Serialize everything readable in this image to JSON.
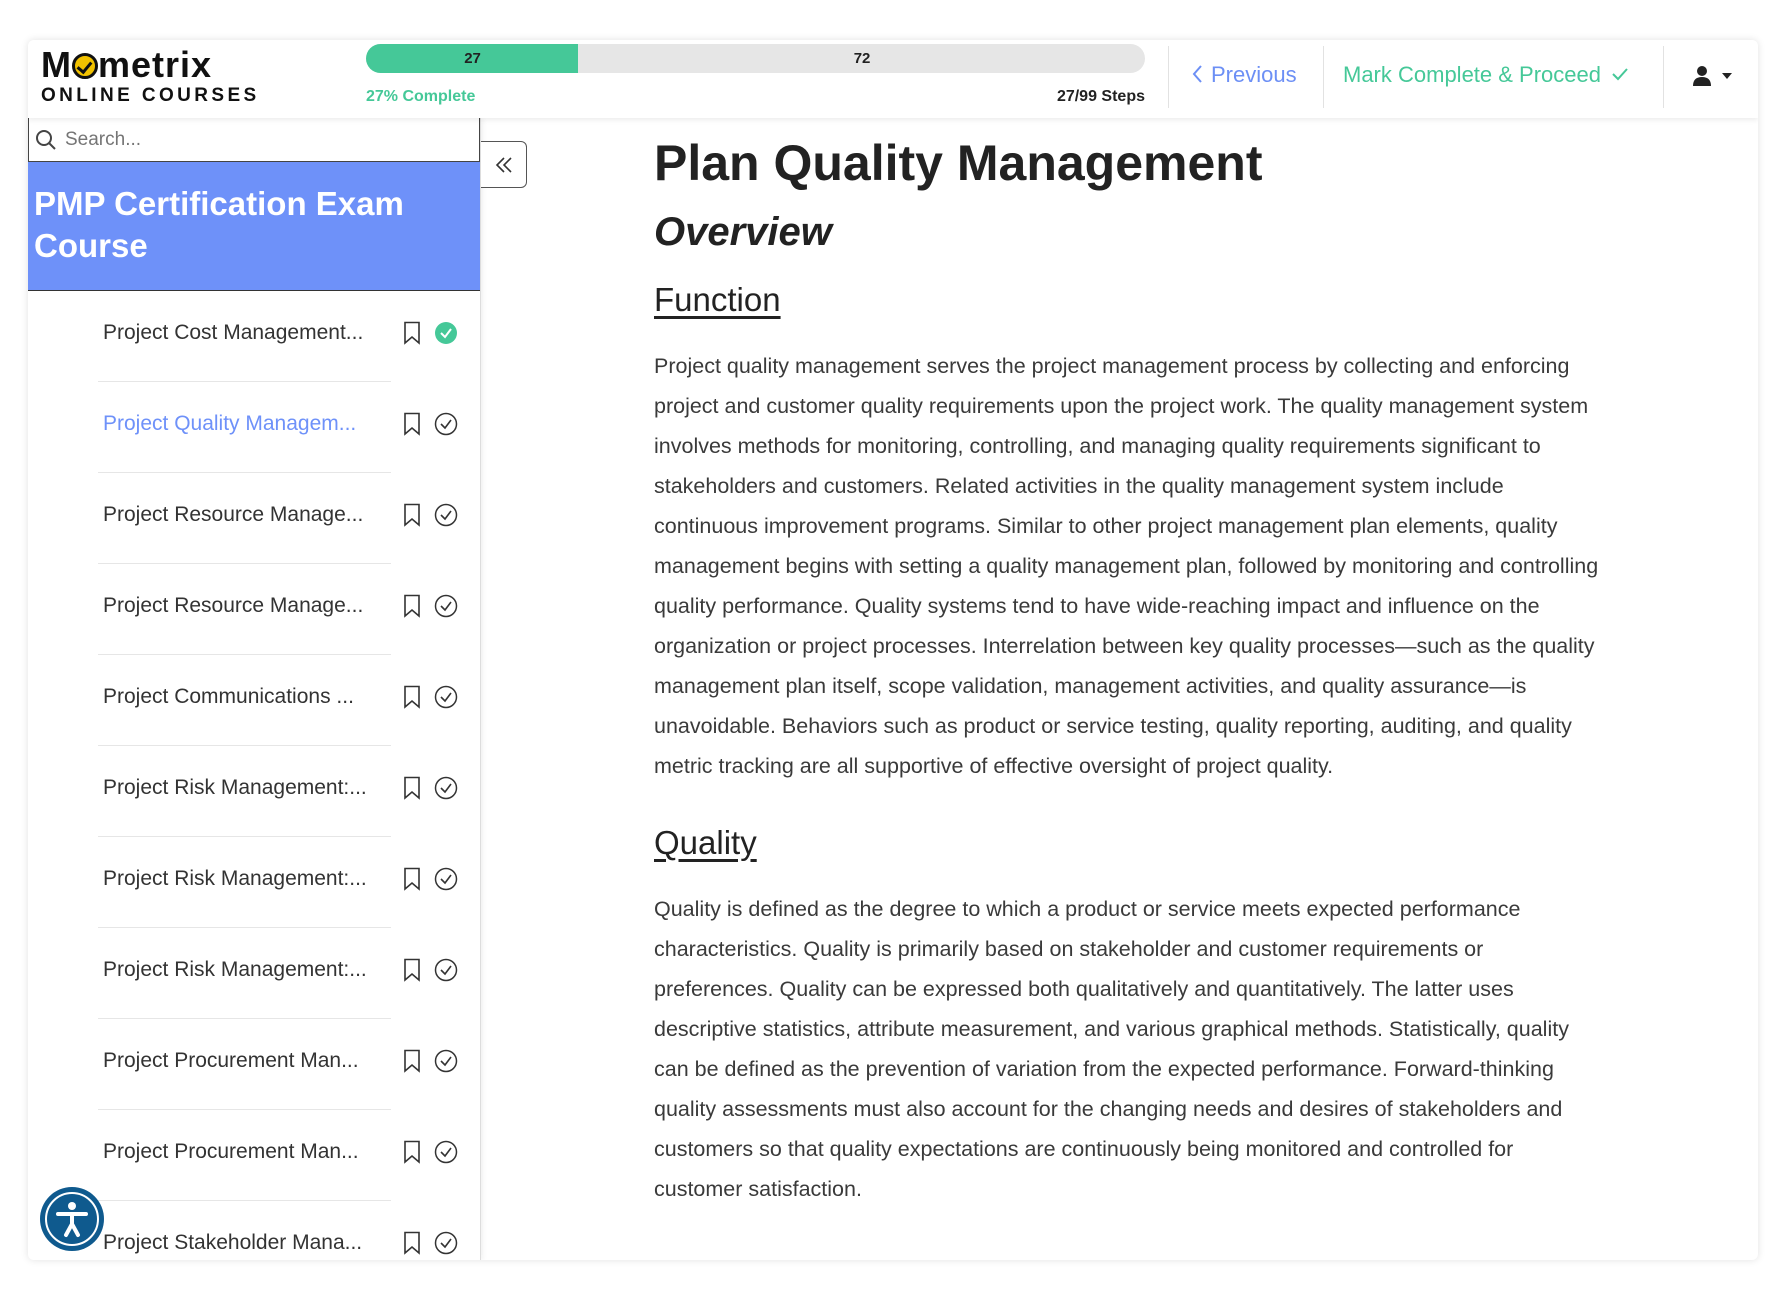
{
  "header": {
    "logo_text": "Mometrix",
    "logo_sub": "ONLINE COURSES",
    "progress": {
      "completed": 27,
      "remaining": 72,
      "total": 99,
      "percent": 27,
      "percent_label": "27% Complete",
      "steps_label": "27/99 Steps",
      "completed_label": "27",
      "remaining_label": "72"
    },
    "previous_label": "Previous",
    "mark_complete_label": "Mark Complete & Proceed",
    "colors": {
      "accent": "#45c898",
      "link": "#6c8ff5"
    }
  },
  "sidebar": {
    "search_placeholder": "Search...",
    "course_title": "PMP Certification Exam Course",
    "items": [
      {
        "label": "Project Cost Management...",
        "completed": true,
        "active": false
      },
      {
        "label": "Project Quality Managem...",
        "completed": false,
        "active": true
      },
      {
        "label": "Project Resource Manage...",
        "completed": false,
        "active": false
      },
      {
        "label": "Project Resource Manage...",
        "completed": false,
        "active": false
      },
      {
        "label": "Project Communications ...",
        "completed": false,
        "active": false
      },
      {
        "label": "Project Risk Management:...",
        "completed": false,
        "active": false
      },
      {
        "label": "Project Risk Management:...",
        "completed": false,
        "active": false
      },
      {
        "label": "Project Risk Management:...",
        "completed": false,
        "active": false
      },
      {
        "label": "Project Procurement Man...",
        "completed": false,
        "active": false
      },
      {
        "label": "Project Procurement Man...",
        "completed": false,
        "active": false
      },
      {
        "label": "Project Stakeholder Mana...",
        "completed": false,
        "active": false
      }
    ]
  },
  "main": {
    "title": "Plan Quality Management",
    "overview": "Overview",
    "sections": [
      {
        "heading": "Function",
        "body": "Project quality management serves the project management process by collecting and enforcing project and customer quality requirements upon the project work. The quality management system involves methods for monitoring, controlling, and managing quality requirements significant to stakeholders and customers. Related activities in the quality management system include continuous improvement programs. Similar to other project management plan elements, quality management begins with setting a quality management plan, followed by monitoring and controlling quality performance. Quality systems tend to have wide-reaching impact and influence on the organization or project processes. Interrelation between key quality processes—such as the quality management plan itself, scope validation, management activities, and quality assurance—is unavoidable. Behaviors such as product or service testing, quality reporting, auditing, and quality metric tracking are all supportive of effective oversight of project quality."
      },
      {
        "heading": "Quality",
        "body": "Quality is defined as the degree to which a product or service meets expected performance characteristics. Quality is primarily based on stakeholder and customer requirements or preferences. Quality can be expressed both qualitatively and quantitatively. The latter uses descriptive statistics, attribute measurement, and various graphical methods. Statistically, quality can be defined as the prevention of variation from the expected performance. Forward-thinking quality assessments must also account for the changing needs and desires of stakeholders and customers so that quality expectations are continuously being monitored and controlled for customer satisfaction."
      }
    ]
  }
}
